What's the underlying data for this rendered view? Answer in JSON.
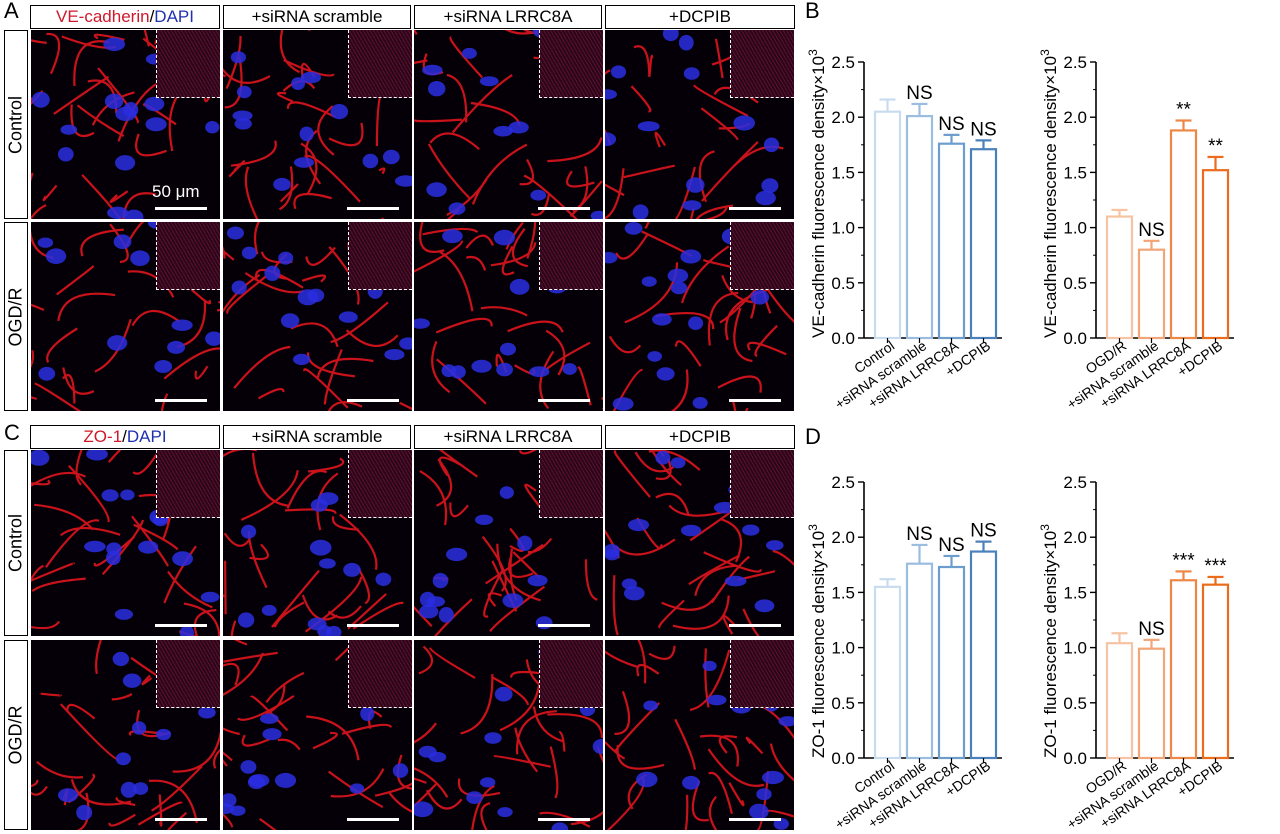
{
  "panels": {
    "a": "A",
    "b": "B",
    "c": "C",
    "d": "D"
  },
  "headers_top": {
    "marker1": "VE-cadherin",
    "slash": "/",
    "dapi": "DAPI",
    "col2": "+siRNA scramble",
    "col3": "+siRNA LRRC8A",
    "col4": "+DCPIB"
  },
  "headers_bottom": {
    "marker1": "ZO-1",
    "slash": "/",
    "dapi": "DAPI",
    "col2": "+siRNA scramble",
    "col3": "+siRNA LRRC8A",
    "col4": "+DCPIB"
  },
  "rows": {
    "control": "Control",
    "ogd": "OGD/R"
  },
  "scale_label": "50 μm",
  "colors": {
    "control_series": [
      "#c9dcef",
      "#9bbde0",
      "#6d9dcd",
      "#4a80bb"
    ],
    "ogd_series": [
      "#f6c3a3",
      "#f2a577",
      "#ee8745",
      "#ea6c1c"
    ],
    "cell_red": "#e0141e",
    "nuclei_blue": "#2a2ee0"
  },
  "chart_data": [
    {
      "type": "bar",
      "ylabel": "VE-cadherin fluorescence density×10",
      "ylabel_sup": "3",
      "ylim": [
        0,
        2.5
      ],
      "yticks": [
        "0.0",
        "0.5",
        "1.0",
        "1.5",
        "2.0",
        "2.5"
      ],
      "categories": [
        "Control",
        "+siRNA scramble",
        "+siRNA LRRC8A",
        "+DCPIB"
      ],
      "values": [
        2.05,
        2.01,
        1.76,
        1.71
      ],
      "errors": [
        0.11,
        0.11,
        0.08,
        0.08
      ],
      "annotations": [
        "",
        "NS",
        "NS",
        "NS"
      ]
    },
    {
      "type": "bar",
      "ylabel": "VE-cadherin fluorescence density×10",
      "ylabel_sup": "3",
      "ylim": [
        0,
        2.5
      ],
      "yticks": [
        "0.0",
        "0.5",
        "1.0",
        "1.5",
        "2.0",
        "2.5"
      ],
      "categories": [
        "OGD/R",
        "+siRNA scramble",
        "+siRNA LRRC8A",
        "+DCPIB"
      ],
      "values": [
        1.1,
        0.8,
        1.88,
        1.52
      ],
      "errors": [
        0.06,
        0.08,
        0.09,
        0.12
      ],
      "annotations": [
        "",
        "NS",
        "**",
        "**"
      ]
    },
    {
      "type": "bar",
      "ylabel": "ZO-1 fluorescence density×10",
      "ylabel_sup": "3",
      "ylim": [
        0,
        2.5
      ],
      "yticks": [
        "0.0",
        "0.5",
        "1.0",
        "1.5",
        "2.0",
        "2.5"
      ],
      "categories": [
        "Control",
        "+siRNA scramble",
        "+siRNA LRRC8A",
        "+DCPIB"
      ],
      "values": [
        1.55,
        1.76,
        1.73,
        1.87
      ],
      "errors": [
        0.07,
        0.17,
        0.1,
        0.09
      ],
      "annotations": [
        "",
        "NS",
        "NS",
        "NS"
      ]
    },
    {
      "type": "bar",
      "ylabel": "ZO-1 fluorescence density×10",
      "ylabel_sup": "3",
      "ylim": [
        0,
        2.5
      ],
      "yticks": [
        "0.0",
        "0.5",
        "1.0",
        "1.5",
        "2.0",
        "2.5"
      ],
      "categories": [
        "OGD/R",
        "+siRNA scramble",
        "+siRNA LRRC8A",
        "+DCPIB"
      ],
      "values": [
        1.04,
        0.99,
        1.61,
        1.57
      ],
      "errors": [
        0.09,
        0.08,
        0.08,
        0.07
      ],
      "annotations": [
        "",
        "NS",
        "***",
        "***"
      ]
    }
  ]
}
